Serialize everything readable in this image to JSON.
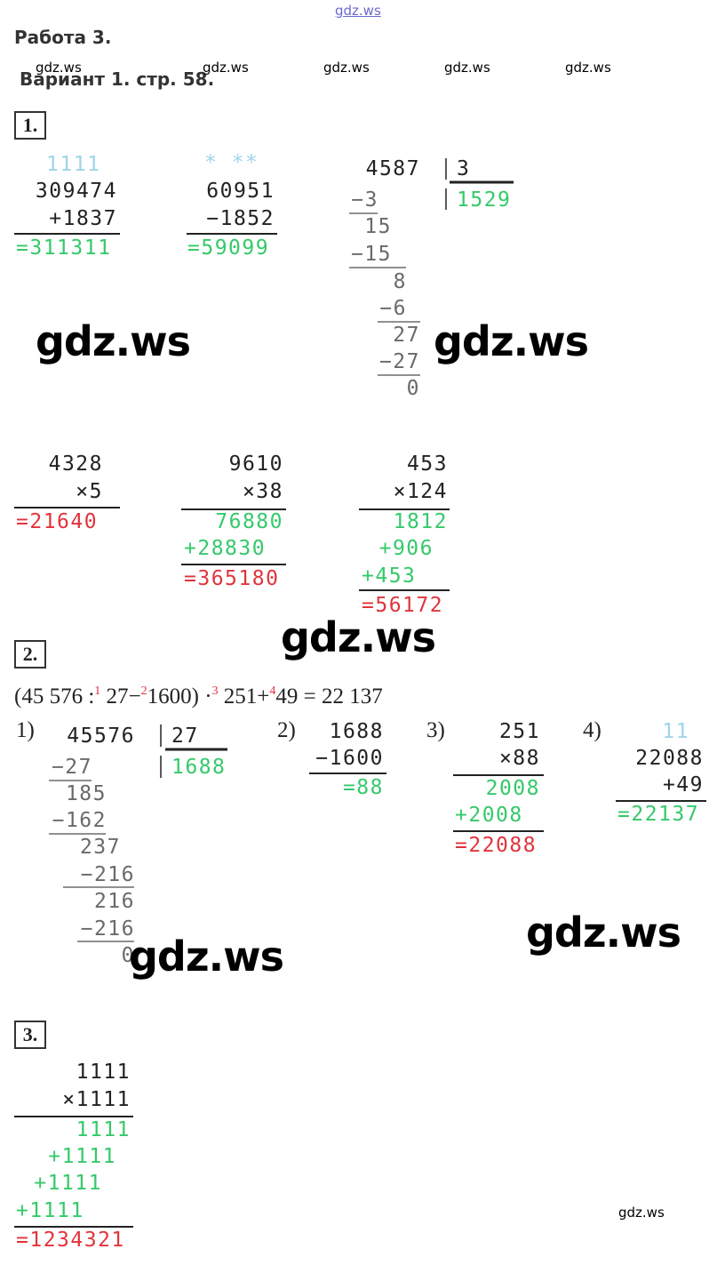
{
  "header": {
    "site": "gdz.ws",
    "title": "Работа 3.",
    "variant": "Вариант 1. стр. 58."
  },
  "watermarks_small": [
    "gdz.ws",
    "gdz.ws",
    "gdz.ws",
    "gdz.ws",
    "gdz.ws",
    "gdz.ws"
  ],
  "watermarks_large": [
    "gdz.ws",
    "gdz.ws",
    "gdz.ws",
    "gdz.ws",
    "gdz.ws"
  ],
  "task1": {
    "label": "1.",
    "addition": {
      "carry": "1111",
      "a": "309474",
      "b": "+1837",
      "result": "=311311"
    },
    "subtraction": {
      "marks": "* **",
      "a": "60951",
      "b": "−1852",
      "result": "=59099"
    },
    "division": {
      "dividend": "4587",
      "divisor": "3",
      "quotient": "1529",
      "steps": [
        "−3",
        "15",
        "−15",
        "8",
        "−6",
        "27",
        "−27",
        "0"
      ]
    },
    "multiplications": [
      {
        "a": "4328",
        "b": "×5",
        "result": "=21640"
      },
      {
        "a": "9610",
        "b": "×38",
        "partials": [
          "76880",
          "+28830"
        ],
        "result": "=365180"
      },
      {
        "a": "453",
        "b": "×124",
        "partials": [
          "1812",
          "+906",
          "+453"
        ],
        "result": "=56172"
      }
    ]
  },
  "task2": {
    "label": "2.",
    "expression": [
      "(45 576 :",
      "1",
      " 27−",
      "2",
      "1600) ·",
      "3",
      " 251+",
      "4",
      "49 = 22 137"
    ],
    "step1": {
      "label": "1)",
      "dividend": "45576",
      "divisor": "27",
      "quotient": "1688",
      "steps": [
        "−27",
        "185",
        "−162",
        "237",
        "−216",
        "216",
        "−216",
        "0"
      ]
    },
    "step2": {
      "label": "2)",
      "a": "1688",
      "b": "−1600",
      "result": "=88"
    },
    "step3": {
      "label": "3)",
      "a": "251",
      "b": "×88",
      "partials": [
        "2008",
        "+2008"
      ],
      "result": "=22088"
    },
    "step4": {
      "label": "4)",
      "carry": "11",
      "a": "22088",
      "b": "+49",
      "result": "=22137"
    }
  },
  "task3": {
    "label": "3.",
    "a": "1111",
    "b": "×1111",
    "partials": [
      "1111",
      "+1111",
      "+1111",
      "+1111"
    ],
    "result": "=1234321"
  }
}
